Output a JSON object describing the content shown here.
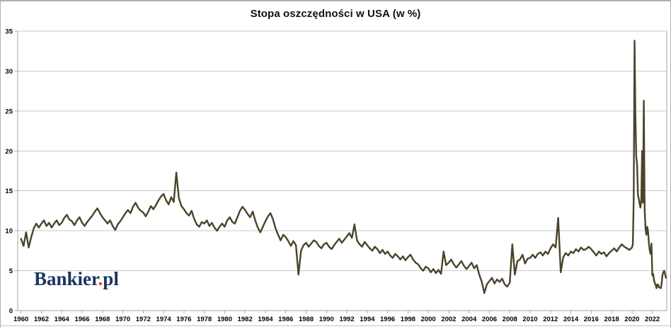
{
  "page": {
    "frame_color": "#b0b0b0",
    "background": "#ffffff"
  },
  "logo": {
    "main": "Bankier",
    "dot": ".",
    "suffix": "pl",
    "navy_color": "#1a355f",
    "dot_color": "#e84f0e"
  },
  "chart_data": {
    "type": "line",
    "title": "Stopa oszczędności w USA (w %)",
    "xlabel": "",
    "ylabel": "",
    "ylim": [
      0,
      35
    ],
    "yticks": [
      0,
      5,
      10,
      15,
      20,
      25,
      30,
      35
    ],
    "xticks": [
      1960,
      1962,
      1964,
      1966,
      1968,
      1970,
      1972,
      1974,
      1976,
      1978,
      1980,
      1982,
      1984,
      1986,
      1988,
      1990,
      1992,
      1994,
      1996,
      1998,
      2000,
      2002,
      2004,
      2006,
      2008,
      2010,
      2012,
      2014,
      2016,
      2018,
      2020,
      2022
    ],
    "grid": true,
    "legend_position": "none",
    "line_color": "#4a432b",
    "grid_color": "#c9c9c9",
    "axis_color": "#a6a6a6",
    "tick_label_color": "#000000",
    "series": [
      {
        "name": "Stopa oszczędności w USA (w %)",
        "segments": [
          {
            "start_x": 1960.0,
            "step": 0.25,
            "values": [
              9.0,
              8.1,
              9.8,
              7.9,
              9.2,
              10.3,
              10.9,
              10.4,
              10.9,
              11.3,
              10.6,
              11.0,
              10.4,
              10.9,
              11.3,
              10.7,
              11.0,
              11.6,
              12.0,
              11.4,
              11.2,
              10.7,
              11.3,
              11.7,
              11.0,
              10.6,
              11.1,
              11.5,
              11.9,
              12.4,
              12.8,
              12.2,
              11.7,
              11.3,
              10.9,
              11.3,
              10.6,
              10.1,
              10.8,
              11.2,
              11.7,
              12.2,
              12.6,
              12.2,
              13.0,
              13.5,
              12.9,
              12.5,
              12.3,
              11.8,
              12.4,
              13.1,
              12.7,
              13.2,
              13.8,
              14.3,
              14.6,
              13.8,
              13.3,
              14.2,
              13.6,
              17.3,
              14.1,
              13.1,
              12.7,
              12.2,
              11.9,
              12.5,
              11.5,
              10.8,
              10.5,
              11.1,
              10.9,
              11.3,
              10.6,
              11.0,
              10.4,
              10.0,
              10.5,
              10.9,
              10.5,
              11.3,
              11.7,
              11.1,
              10.9,
              11.7,
              12.5,
              13.0,
              12.6,
              12.1,
              11.7,
              12.4,
              11.3,
              10.4,
              9.8,
              10.5,
              11.2,
              11.8,
              12.2,
              11.4,
              10.3,
              9.5,
              8.8,
              9.5,
              9.2,
              8.7,
              8.1,
              8.7,
              8.2,
              4.5,
              7.5,
              8.2,
              8.5,
              8.0,
              8.4,
              8.8,
              8.6,
              8.1,
              7.8,
              8.3,
              8.5,
              8.0,
              7.7,
              8.2,
              8.6,
              9.0,
              8.5,
              8.9,
              9.3,
              9.7,
              9.1,
              10.8,
              8.8,
              8.3,
              8.0,
              8.6,
              8.2,
              7.8,
              7.5,
              8.0,
              7.7,
              7.2,
              7.6,
              7.1,
              7.4,
              6.9,
              6.6,
              7.1,
              6.8,
              6.4,
              6.8,
              6.3,
              6.7,
              7.0,
              6.4,
              6.0,
              5.8,
              5.3,
              5.0,
              5.5,
              5.3,
              4.8,
              5.2,
              4.7,
              5.1,
              4.6,
              7.4,
              5.7,
              6.0,
              6.4,
              5.8,
              5.4,
              5.8,
              6.2,
              5.6,
              5.2,
              5.6,
              6.0,
              5.3,
              5.7,
              4.5,
              3.6,
              2.2,
              3.3,
              3.7,
              4.1,
              3.4,
              3.9,
              3.6,
              4.0,
              3.3,
              3.0,
              3.5,
              8.3,
              4.5,
              6.2,
              6.4,
              7.0,
              5.9,
              6.5,
              6.6,
              7.0,
              6.6,
              7.1,
              7.3,
              6.9,
              7.4,
              7.1,
              7.8,
              8.3,
              7.9,
              11.6,
              4.8,
              6.7,
              7.2,
              6.9,
              7.4,
              7.2,
              7.7,
              7.4,
              7.9,
              7.6,
              7.7,
              8.0,
              7.7,
              7.3,
              6.9,
              7.4,
              7.1,
              7.3,
              6.8,
              7.2,
              7.5,
              7.8,
              7.4,
              7.9,
              8.3,
              8.0,
              7.8,
              7.6
            ]
          },
          {
            "start_x": 2020.0,
            "step": 0.0833333,
            "values": [
              7.9,
              8.3,
              13.9,
              33.8,
              24.4,
              19.3,
              18.3,
              14.5,
              14.0,
              13.4,
              12.9,
              13.8,
              20.0,
              13.5,
              26.3,
              12.6,
              10.3,
              9.5,
              10.5,
              9.9,
              8.4,
              7.5,
              7.1,
              8.4,
              4.4,
              4.6,
              3.8,
              3.4,
              3.2,
              2.8,
              3.3,
              3.2,
              2.9,
              2.9,
              2.8,
              3.4,
              4.5,
              4.8,
              5.0,
              4.6,
              4.1
            ]
          }
        ]
      }
    ]
  }
}
